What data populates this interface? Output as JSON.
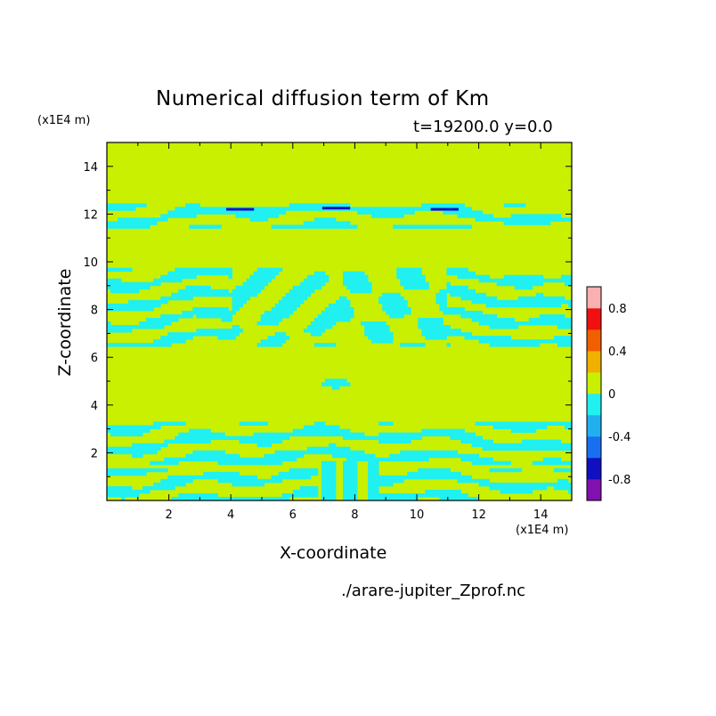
{
  "chart_data": {
    "type": "heatmap",
    "title": "Numerical diffusion term of Km",
    "subtitle": "t=19200.0 y=0.0",
    "xlabel": "X-coordinate",
    "ylabel": "Z-coordinate",
    "x_unit": "(x1E4 m)",
    "y_unit": "(x1E4 m)",
    "source": "./arare-jupiter_Zprof.nc",
    "xlim": [
      0,
      15
    ],
    "ylim": [
      0,
      15
    ],
    "xticks": [
      "2",
      "4",
      "6",
      "8",
      "10",
      "12",
      "14"
    ],
    "yticks": [
      "2",
      "4",
      "6",
      "8",
      "10",
      "12",
      "14"
    ],
    "colorbar": {
      "range": [
        -1.0,
        1.0
      ],
      "labels": [
        "0.8",
        "0.4",
        "0",
        "-0.4",
        "-0.8"
      ],
      "label_values": [
        0.8,
        0.4,
        0,
        -0.4,
        -0.8
      ],
      "levels": [
        -1.0,
        -0.8,
        -0.6,
        -0.4,
        -0.2,
        0.0,
        0.2,
        0.4,
        0.6,
        0.8,
        1.0
      ],
      "colors": [
        "#8010b0",
        "#1010c0",
        "#1870f0",
        "#20b0f0",
        "#20f0f0",
        "#c8f000",
        "#f0b000",
        "#f06000",
        "#f01010",
        "#f8b0b0"
      ]
    },
    "field": {
      "background_value": "0 to 0.2",
      "background_color": "#c8f000",
      "band_value": "-0.2 to 0",
      "band_color": "#20f0f0",
      "peak_color": "#1010c0",
      "cyan_bands_z": [
        [
          0.0,
          1.3
        ],
        [
          1.5,
          3.3
        ],
        [
          6.5,
          9.8
        ],
        [
          11.4,
          12.5
        ]
      ],
      "plume": {
        "x": [
          6.8,
          8.8
        ],
        "z": [
          0.0,
          1.6
        ]
      },
      "blob": {
        "x": 7.4,
        "z": 4.9
      }
    }
  }
}
